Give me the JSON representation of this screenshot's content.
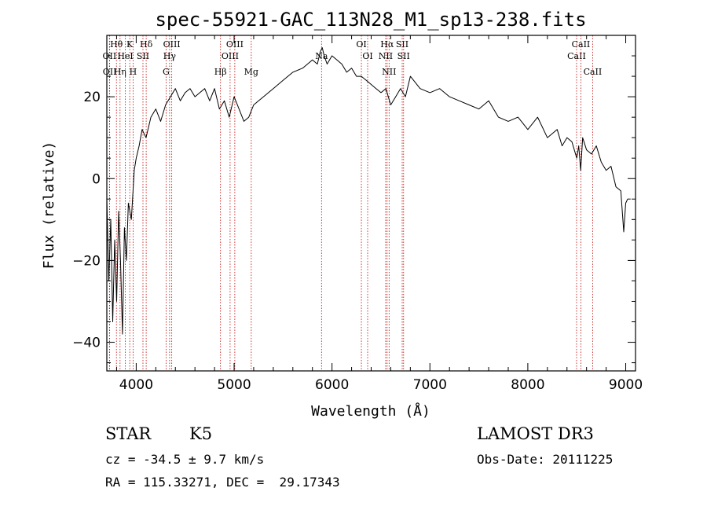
{
  "chart_data": {
    "type": "line",
    "title": "spec-55921-GAC_113N28_M1_sp13-238.fits",
    "xlabel": "Wavelength (Å)",
    "ylabel": "Flux (relative)",
    "xlim": [
      3700,
      9100
    ],
    "ylim": [
      -47,
      35
    ],
    "xticks": [
      4000,
      5000,
      6000,
      7000,
      8000,
      9000
    ],
    "yticks": [
      -40,
      -20,
      0,
      20
    ],
    "grid": false,
    "legend": "none",
    "colors": {
      "spectrum": "#000000",
      "line_marker": "#c00000"
    },
    "series": [
      {
        "x": [
          3700,
          3720,
          3740,
          3760,
          3780,
          3800,
          3820,
          3840,
          3860,
          3880,
          3900,
          3920,
          3950,
          3980,
          4000,
          4030,
          4060,
          4100,
          4150,
          4200,
          4250,
          4300,
          4350,
          4400,
          4450,
          4500,
          4550,
          4600,
          4650,
          4700,
          4750,
          4800,
          4850,
          4900,
          4950,
          5000,
          5050,
          5100,
          5150,
          5200,
          5300,
          5400,
          5500,
          5600,
          5700,
          5800,
          5850,
          5880,
          5900,
          5920,
          5950,
          6000,
          6050,
          6100,
          6150,
          6200,
          6250,
          6300,
          6350,
          6400,
          6450,
          6500,
          6550,
          6600,
          6650,
          6700,
          6750,
          6800,
          6900,
          7000,
          7100,
          7200,
          7300,
          7400,
          7500,
          7600,
          7700,
          7800,
          7900,
          8000,
          8100,
          8200,
          8300,
          8350,
          8400,
          8450,
          8500,
          8520,
          8540,
          8560,
          8600,
          8650,
          8700,
          8750,
          8800,
          8850,
          8900,
          8950,
          8980,
          9000,
          9020,
          9050
        ],
        "y": [
          -5,
          -25,
          -10,
          -35,
          -15,
          -30,
          -8,
          -20,
          -38,
          -12,
          -20,
          -6,
          -10,
          2,
          5,
          8,
          12,
          10,
          15,
          17,
          14,
          18,
          20,
          22,
          19,
          21,
          22,
          20,
          21,
          22,
          19,
          22,
          17,
          19,
          15,
          20,
          17,
          14,
          15,
          18,
          20,
          22,
          24,
          26,
          27,
          29,
          28,
          31,
          32,
          30,
          28,
          30,
          29,
          28,
          26,
          27,
          25,
          25,
          24,
          23,
          22,
          21,
          22,
          18,
          20,
          22,
          20,
          25,
          22,
          21,
          22,
          20,
          19,
          18,
          17,
          19,
          15,
          14,
          15,
          12,
          15,
          10,
          12,
          8,
          10,
          9,
          5,
          8,
          2,
          10,
          7,
          6,
          8,
          4,
          2,
          3,
          -2,
          -3,
          -13,
          -6,
          -5,
          -5
        ]
      }
    ],
    "spectral_lines": [
      {
        "label": "Hθ",
        "x": 3798,
        "row": 0
      },
      {
        "label": "OII",
        "x": 3727,
        "row": 1
      },
      {
        "label": "OII",
        "x": 3729,
        "row": 2
      },
      {
        "label": "Hη",
        "x": 3835,
        "row": 2
      },
      {
        "label": "HeI",
        "x": 3889,
        "row": 1
      },
      {
        "label": "K",
        "x": 3934,
        "row": 0
      },
      {
        "label": "H",
        "x": 3968,
        "row": 2
      },
      {
        "label": "SII",
        "x": 4069,
        "row": 1
      },
      {
        "label": "Hδ",
        "x": 4102,
        "row": 0
      },
      {
        "label": "OIII",
        "x": 4363,
        "row": 0
      },
      {
        "label": "Hγ",
        "x": 4341,
        "row": 1
      },
      {
        "label": "G",
        "x": 4305,
        "row": 2
      },
      {
        "label": "Hβ",
        "x": 4861,
        "row": 2
      },
      {
        "label": "OIII",
        "x": 4959,
        "row": 1
      },
      {
        "label": "OIII",
        "x": 5007,
        "row": 0
      },
      {
        "label": "Mg",
        "x": 5175,
        "row": 2
      },
      {
        "label": "Na",
        "x": 5893,
        "row": 1
      },
      {
        "label": "OI",
        "x": 6300,
        "row": 0
      },
      {
        "label": "OI",
        "x": 6364,
        "row": 1
      },
      {
        "label": "NII",
        "x": 6548,
        "row": 1
      },
      {
        "label": "Hα",
        "x": 6563,
        "row": 0
      },
      {
        "label": "NII",
        "x": 6583,
        "row": 2
      },
      {
        "label": "SII",
        "x": 6717,
        "row": 0
      },
      {
        "label": "SII",
        "x": 6731,
        "row": 1
      },
      {
        "label": "CaII",
        "x": 8498,
        "row": 1
      },
      {
        "label": "CaII",
        "x": 8542,
        "row": 0
      },
      {
        "label": "CaII",
        "x": 8662,
        "row": 2
      }
    ]
  },
  "info": {
    "class": "STAR",
    "subclass": "K5",
    "survey": "LAMOST DR3",
    "cz": "cz = -34.5 ± 9.7 km/s",
    "obs_date": "Obs-Date: 20111225",
    "coords": "RA = 115.33271, DEC =  29.17343"
  }
}
